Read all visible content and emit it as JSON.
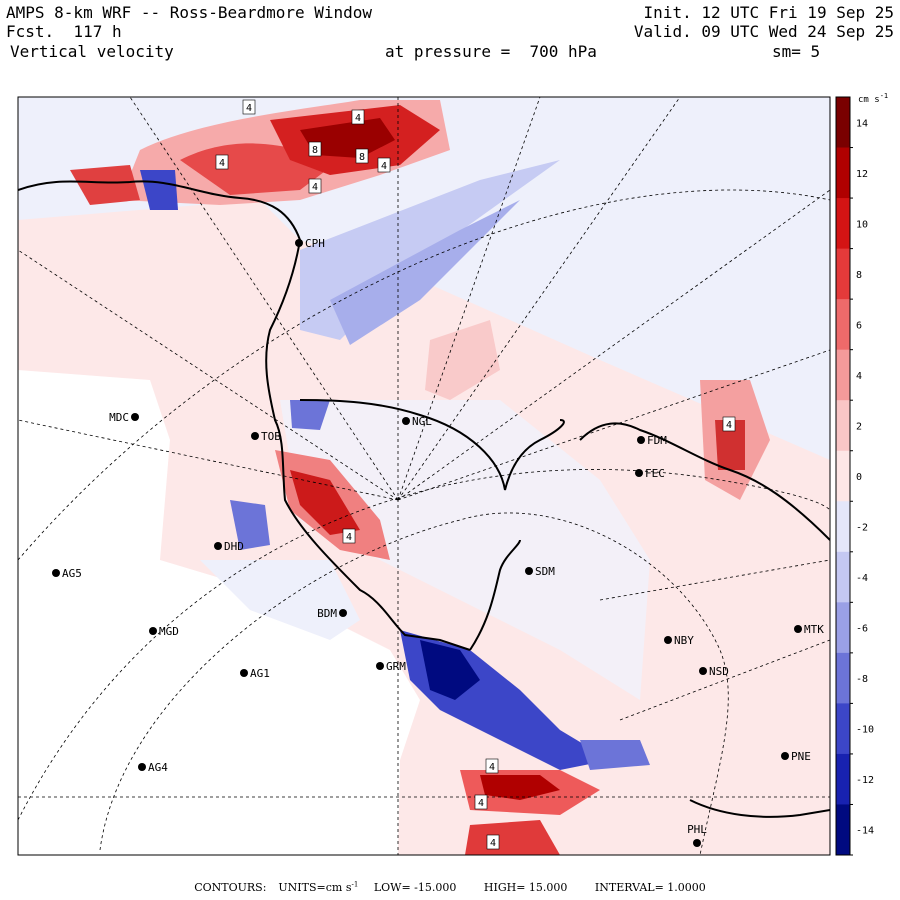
{
  "header": {
    "model": "AMPS 8-km WRF -- Ross-Beardmore Window",
    "init": "Init. 12 UTC Fri 19 Sep 25",
    "fcst": "Fcst.  117 h",
    "valid": "Valid. 09 UTC Wed 24 Sep 25",
    "variable": "Vertical velocity",
    "level": "at pressure =  700 hPa",
    "smooth": "sm= 5"
  },
  "colorbar": {
    "units": "cm s",
    "units_exp": "-1",
    "tick_labels": [
      "14",
      "12",
      "10",
      "8",
      "6",
      "4",
      "2",
      "0",
      "-2",
      "-4",
      "-6",
      "-8",
      "-10",
      "-12",
      "-14"
    ],
    "colors": [
      "#7a0000",
      "#b00000",
      "#d41414",
      "#e43a3a",
      "#ee6a6a",
      "#f49a9a",
      "#f9c6c6",
      "#fde6e6",
      "#e4e6fa",
      "#c4c8f2",
      "#9aa0e6",
      "#6c74d8",
      "#3c46c8",
      "#1822b0",
      "#000a80"
    ]
  },
  "stations": [
    {
      "name": "CPH"
    },
    {
      "name": "NGL"
    },
    {
      "name": "MDC"
    },
    {
      "name": "TOB"
    },
    {
      "name": "FDM"
    },
    {
      "name": "FEC"
    },
    {
      "name": "DHD"
    },
    {
      "name": "AG5"
    },
    {
      "name": "SDM"
    },
    {
      "name": "BDM"
    },
    {
      "name": "MGD"
    },
    {
      "name": "NBY"
    },
    {
      "name": "MTK"
    },
    {
      "name": "GRM"
    },
    {
      "name": "AG1"
    },
    {
      "name": "NSD"
    },
    {
      "name": "AG4"
    },
    {
      "name": "PNE"
    },
    {
      "name": "PHL"
    }
  ],
  "contour_labels": [
    "4",
    "4",
    "4",
    "8",
    "8",
    "4",
    "4",
    "4",
    "4",
    "4",
    "4",
    "4"
  ],
  "footer": {
    "contours": "CONTOURS:",
    "units": "UNITS=cm s",
    "units_exp": "-1",
    "low": "LOW= -15.000",
    "high": "HIGH= 15.000",
    "interval": "INTERVAL= 1.0000"
  }
}
